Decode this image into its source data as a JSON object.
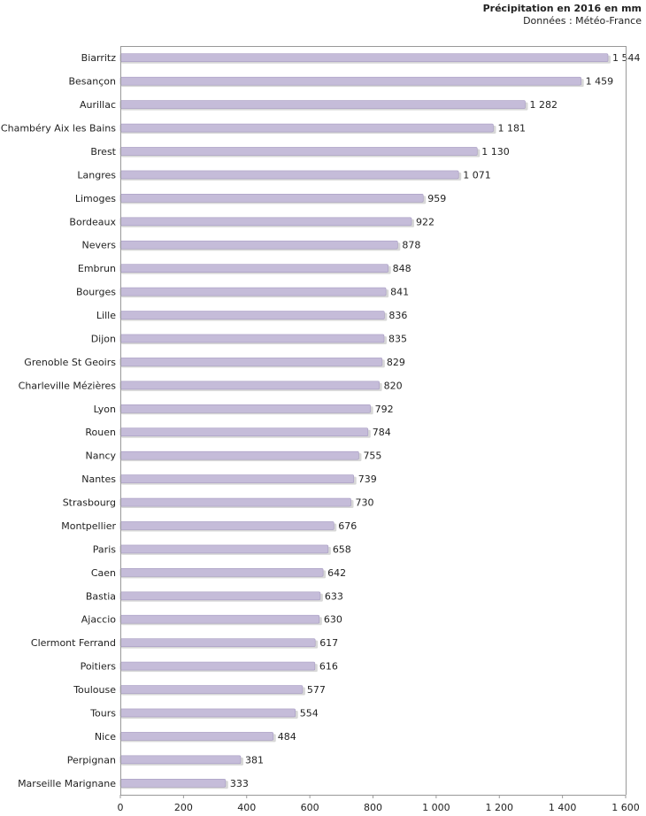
{
  "chart_data": {
    "type": "bar",
    "orientation": "horizontal",
    "title": "Précipitation en 2016 en mm",
    "subtitle": "Données : Météo-France",
    "xlim": [
      0,
      1600
    ],
    "xticks": [
      0,
      200,
      400,
      600,
      800,
      1000,
      1200,
      1400,
      1600
    ],
    "xtick_labels": [
      "0",
      "200",
      "400",
      "600",
      "800",
      "1 000",
      "1 200",
      "1 400",
      "1 600"
    ],
    "grid": false,
    "categories": [
      "Biarritz",
      "Besançon",
      "Aurillac",
      "Chambéry Aix les Bains",
      "Brest",
      "Langres",
      "Limoges",
      "Bordeaux",
      "Nevers",
      "Embrun",
      "Bourges",
      "Lille",
      "Dijon",
      "Grenoble St Geoirs",
      "Charleville Mézières",
      "Lyon",
      "Rouen",
      "Nancy",
      "Nantes",
      "Strasbourg",
      "Montpellier",
      "Paris",
      "Caen",
      "Bastia",
      "Ajaccio",
      "Clermont Ferrand",
      "Poitiers",
      "Toulouse",
      "Tours",
      "Nice",
      "Perpignan",
      "Marseille Marignane"
    ],
    "values": [
      1544,
      1459,
      1282,
      1181,
      1130,
      1071,
      959,
      922,
      878,
      848,
      841,
      836,
      835,
      829,
      820,
      792,
      784,
      755,
      739,
      730,
      676,
      658,
      642,
      633,
      630,
      617,
      616,
      577,
      554,
      484,
      381,
      333
    ],
    "value_labels": [
      "1 544",
      "1 459",
      "1 282",
      "1 181",
      "1 130",
      "1 071",
      "959",
      "922",
      "878",
      "848",
      "841",
      "836",
      "835",
      "829",
      "820",
      "792",
      "784",
      "755",
      "739",
      "730",
      "676",
      "658",
      "642",
      "633",
      "630",
      "617",
      "616",
      "577",
      "554",
      "484",
      "381",
      "333"
    ],
    "bar_color": "#c5bcd9",
    "bar_edge_color": "#a79cc2",
    "bar_shadow_color": "#d7d7d7"
  }
}
